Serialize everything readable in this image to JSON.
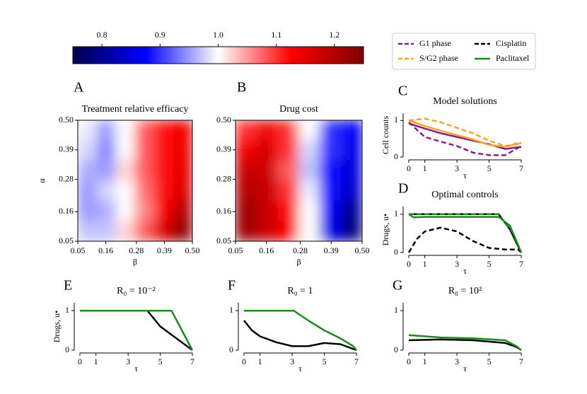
{
  "colorbar": {
    "colormap": "seismic",
    "clim": [
      0.75,
      1.25
    ],
    "ticks": [
      0.8,
      0.9,
      {
        "value": 1,
        "label": "1.0"
      },
      1.1,
      1.2
    ]
  },
  "legend": [
    {
      "name": "G1 phase",
      "color": "#8b1a8b",
      "dash": true
    },
    {
      "name": "S/G2 phase",
      "color": "#f5a623",
      "dash": true
    },
    {
      "name": "Cisplatin",
      "color": "#000000",
      "dash": true
    },
    {
      "name": "Paclitaxel",
      "color": "#1a8a1a",
      "dash": false
    }
  ],
  "chart_data": [
    {
      "type": "heatmap",
      "panel": "A",
      "title": "Treatment relative efficacy",
      "xlabel": "β",
      "ylabel": "α",
      "xlim": [
        0.05,
        0.5
      ],
      "ylim": [
        0.05,
        0.5
      ],
      "xticks": [
        0.05,
        0.16,
        0.28,
        0.39,
        {
          "value": 0.5,
          "label": "0.50"
        }
      ],
      "yticks": [
        0.05,
        0.16,
        0.28,
        0.39,
        {
          "value": 0.5,
          "label": "0.50"
        }
      ],
      "z": [
        [
          0.99,
          0.95,
          1.0,
          1.08,
          1.12,
          1.14
        ],
        [
          0.98,
          0.94,
          1.0,
          1.08,
          1.12,
          1.14
        ],
        [
          0.96,
          0.95,
          1.02,
          1.08,
          1.12,
          1.15
        ],
        [
          0.95,
          0.98,
          1.0,
          1.07,
          1.12,
          1.16
        ],
        [
          0.95,
          0.96,
          1.0,
          1.06,
          1.13,
          1.2
        ],
        [
          0.97,
          0.97,
          1.02,
          1.08,
          1.16,
          1.23
        ]
      ]
    },
    {
      "type": "heatmap",
      "panel": "B",
      "title": "Drug cost",
      "xlabel": "β",
      "xlim": [
        0.05,
        0.5
      ],
      "ylim": [
        0.05,
        0.5
      ],
      "xticks": [
        0.05,
        0.16,
        0.28,
        0.39,
        {
          "value": 0.5,
          "label": "0.50"
        }
      ],
      "yticks": [
        0.05,
        0.16,
        0.28,
        0.39,
        {
          "value": 0.5,
          "label": "0.50"
        }
      ],
      "z": [
        [
          1.1,
          1.14,
          1.1,
          1.0,
          0.9,
          0.87
        ],
        [
          1.14,
          1.16,
          1.1,
          0.98,
          0.9,
          0.86
        ],
        [
          1.18,
          1.17,
          1.08,
          0.97,
          0.88,
          0.85
        ],
        [
          1.2,
          1.18,
          1.1,
          0.99,
          0.88,
          0.84
        ],
        [
          1.22,
          1.18,
          1.12,
          1.0,
          0.87,
          0.8
        ],
        [
          1.22,
          1.18,
          1.13,
          1.0,
          0.86,
          0.79
        ]
      ]
    },
    {
      "type": "line",
      "panel": "C",
      "title": "Model solutions",
      "xlabel": "τ",
      "ylabel": "Cell counts",
      "xlim": [
        -0.35,
        7.35
      ],
      "ylim": [
        0,
        1.2
      ],
      "xticks": [
        0,
        1,
        3,
        5,
        7
      ],
      "yticks": [
        0,
        1
      ],
      "series": [
        {
          "color": "#8b1a8b",
          "dash": false,
          "x": [
            0,
            1,
            2,
            3,
            4,
            5,
            6,
            7
          ],
          "values": [
            0.92,
            0.78,
            0.65,
            0.55,
            0.45,
            0.35,
            0.22,
            0.28
          ]
        },
        {
          "color": "#f5a623",
          "dash": false,
          "x": [
            0,
            1,
            2,
            3,
            4,
            5,
            6,
            7
          ],
          "values": [
            1.0,
            0.85,
            0.72,
            0.6,
            0.48,
            0.33,
            0.28,
            0.38
          ]
        },
        {
          "color": "#8b1a8b",
          "dash": true,
          "x": [
            0,
            1,
            2,
            3,
            4,
            5,
            6,
            7
          ],
          "values": [
            0.95,
            0.55,
            0.42,
            0.3,
            0.12,
            0.05,
            0.05,
            0.3
          ]
        },
        {
          "color": "#f5a623",
          "dash": true,
          "x": [
            0,
            1,
            2,
            3,
            4,
            5,
            6,
            7
          ],
          "values": [
            1.0,
            1.05,
            0.95,
            0.8,
            0.65,
            0.45,
            0.3,
            0.4
          ]
        }
      ]
    },
    {
      "type": "line",
      "panel": "D",
      "title": "Optimal controls",
      "xlabel": "τ",
      "ylabel": "Drugs, u•",
      "xlim": [
        -0.35,
        7.35
      ],
      "ylim": [
        0,
        1.2
      ],
      "xticks": [
        0,
        1,
        3,
        5,
        7
      ],
      "yticks": [
        0,
        1
      ],
      "series": [
        {
          "color": "#000000",
          "dash": false,
          "x": [
            0,
            5.6,
            6.3,
            7
          ],
          "values": [
            1,
            1,
            0.6,
            0
          ]
        },
        {
          "color": "#000000",
          "dash": true,
          "x": [
            0,
            0.5,
            1,
            2,
            3,
            4,
            5,
            6,
            6.8,
            7
          ],
          "values": [
            0,
            0.35,
            0.55,
            0.65,
            0.55,
            0.3,
            0.12,
            0.08,
            0.08,
            0
          ]
        },
        {
          "color": "#1a8a1a",
          "dash": false,
          "x": [
            0,
            0.3,
            1,
            5.6,
            6.3,
            7
          ],
          "values": [
            1,
            0.92,
            0.93,
            0.93,
            0.7,
            0
          ]
        },
        {
          "color": "#1a8a1a",
          "dash": true,
          "x": [
            0,
            5.6,
            6.5,
            7
          ],
          "values": [
            1,
            1,
            0.5,
            0
          ]
        }
      ]
    },
    {
      "type": "line",
      "panel": "E",
      "title": "R₀ = 10⁻²",
      "xlabel": "τ",
      "ylabel": "Drugs, u•",
      "xlim": [
        -0.35,
        7.35
      ],
      "ylim": [
        0,
        1.2
      ],
      "xticks": [
        0,
        1,
        3,
        5,
        7
      ],
      "yticks": [
        0,
        1
      ],
      "series": [
        {
          "color": "#000000",
          "dash": false,
          "x": [
            0,
            4.2,
            5,
            6,
            7
          ],
          "values": [
            1,
            1,
            0.6,
            0.3,
            0
          ]
        },
        {
          "color": "#1a8a1a",
          "dash": false,
          "x": [
            0,
            5.7,
            7
          ],
          "values": [
            1,
            1,
            0
          ]
        }
      ]
    },
    {
      "type": "line",
      "panel": "F",
      "title": "R₀ = 1",
      "xlabel": "τ",
      "xlim": [
        -0.35,
        7.35
      ],
      "ylim": [
        0,
        1.2
      ],
      "xticks": [
        0,
        1,
        3,
        5,
        7
      ],
      "yticks": [
        0,
        1
      ],
      "series": [
        {
          "color": "#000000",
          "dash": false,
          "x": [
            0,
            0.5,
            1,
            2,
            3,
            4,
            5,
            6,
            7
          ],
          "values": [
            0.75,
            0.5,
            0.35,
            0.2,
            0.1,
            0.1,
            0.18,
            0.15,
            0
          ]
        },
        {
          "color": "#1a8a1a",
          "dash": false,
          "x": [
            0,
            3.1,
            4,
            5,
            6,
            6.8,
            7
          ],
          "values": [
            1,
            1,
            0.75,
            0.5,
            0.3,
            0.1,
            0
          ]
        }
      ]
    },
    {
      "type": "line",
      "panel": "G",
      "title": "R₀ = 10²",
      "xlabel": "τ",
      "xlim": [
        -0.35,
        7.35
      ],
      "ylim": [
        0,
        1.2
      ],
      "xticks": [
        0,
        1,
        3,
        5,
        7
      ],
      "yticks": [
        0,
        1
      ],
      "series": [
        {
          "color": "#000000",
          "dash": false,
          "x": [
            0,
            2,
            4,
            6,
            6.7,
            7
          ],
          "values": [
            0.25,
            0.27,
            0.25,
            0.18,
            0.08,
            0
          ]
        },
        {
          "color": "#1a8a1a",
          "dash": false,
          "x": [
            0,
            2,
            4,
            6,
            6.7,
            7
          ],
          "values": [
            0.38,
            0.32,
            0.3,
            0.25,
            0.1,
            0
          ]
        }
      ]
    }
  ]
}
